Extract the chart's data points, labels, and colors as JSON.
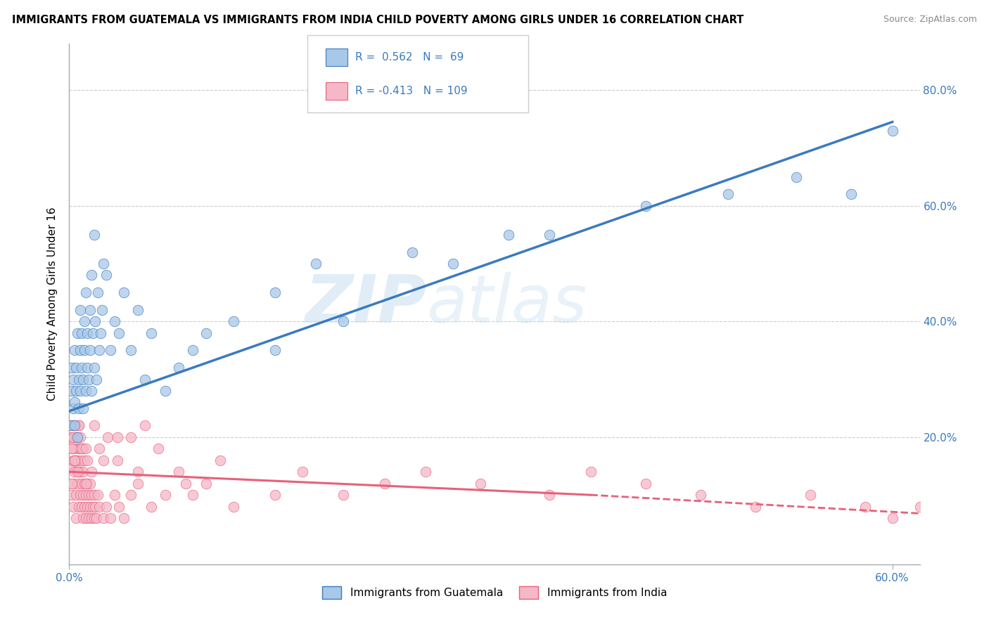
{
  "title": "IMMIGRANTS FROM GUATEMALA VS IMMIGRANTS FROM INDIA CHILD POVERTY AMONG GIRLS UNDER 16 CORRELATION CHART",
  "source": "Source: ZipAtlas.com",
  "ylabel": "Child Poverty Among Girls Under 16",
  "ylabel_right_labels": [
    "20.0%",
    "40.0%",
    "60.0%",
    "80.0%"
  ],
  "ylabel_right_values": [
    0.2,
    0.4,
    0.6,
    0.8
  ],
  "r1": 0.562,
  "n1": 69,
  "r2": -0.413,
  "n2": 109,
  "color_guatemala": "#a8c8e8",
  "color_india": "#f5b8c8",
  "line_color_guatemala": "#3a7abf",
  "line_color_india": "#e8607a",
  "watermark_zip": "ZIP",
  "watermark_atlas": "atlas",
  "xlim": [
    0.0,
    0.62
  ],
  "ylim": [
    -0.02,
    0.88
  ],
  "guatemala_x": [
    0.001,
    0.002,
    0.002,
    0.003,
    0.003,
    0.004,
    0.004,
    0.004,
    0.005,
    0.005,
    0.006,
    0.006,
    0.007,
    0.007,
    0.008,
    0.008,
    0.008,
    0.009,
    0.009,
    0.01,
    0.01,
    0.011,
    0.011,
    0.012,
    0.012,
    0.013,
    0.013,
    0.014,
    0.015,
    0.015,
    0.016,
    0.016,
    0.017,
    0.018,
    0.018,
    0.019,
    0.02,
    0.021,
    0.022,
    0.023,
    0.024,
    0.025,
    0.027,
    0.03,
    0.033,
    0.036,
    0.04,
    0.045,
    0.05,
    0.055,
    0.06,
    0.07,
    0.08,
    0.09,
    0.1,
    0.12,
    0.15,
    0.2,
    0.28,
    0.35,
    0.42,
    0.48,
    0.53,
    0.57,
    0.6,
    0.32,
    0.18,
    0.25,
    0.15
  ],
  "guatemala_y": [
    0.22,
    0.28,
    0.32,
    0.25,
    0.3,
    0.22,
    0.26,
    0.35,
    0.28,
    0.32,
    0.2,
    0.38,
    0.3,
    0.25,
    0.35,
    0.28,
    0.42,
    0.32,
    0.38,
    0.25,
    0.3,
    0.4,
    0.35,
    0.28,
    0.45,
    0.32,
    0.38,
    0.3,
    0.35,
    0.42,
    0.28,
    0.48,
    0.38,
    0.32,
    0.55,
    0.4,
    0.3,
    0.45,
    0.35,
    0.38,
    0.42,
    0.5,
    0.48,
    0.35,
    0.4,
    0.38,
    0.45,
    0.35,
    0.42,
    0.3,
    0.38,
    0.28,
    0.32,
    0.35,
    0.38,
    0.4,
    0.35,
    0.4,
    0.5,
    0.55,
    0.6,
    0.62,
    0.65,
    0.62,
    0.73,
    0.55,
    0.5,
    0.52,
    0.45
  ],
  "india_x": [
    0.001,
    0.001,
    0.002,
    0.002,
    0.002,
    0.003,
    0.003,
    0.003,
    0.003,
    0.004,
    0.004,
    0.004,
    0.005,
    0.005,
    0.005,
    0.005,
    0.006,
    0.006,
    0.006,
    0.007,
    0.007,
    0.007,
    0.007,
    0.008,
    0.008,
    0.008,
    0.009,
    0.009,
    0.009,
    0.01,
    0.01,
    0.01,
    0.01,
    0.011,
    0.011,
    0.011,
    0.012,
    0.012,
    0.013,
    0.013,
    0.013,
    0.014,
    0.014,
    0.015,
    0.015,
    0.016,
    0.016,
    0.017,
    0.018,
    0.018,
    0.019,
    0.02,
    0.021,
    0.022,
    0.025,
    0.027,
    0.03,
    0.033,
    0.036,
    0.04,
    0.045,
    0.05,
    0.06,
    0.07,
    0.08,
    0.09,
    0.1,
    0.12,
    0.15,
    0.17,
    0.2,
    0.23,
    0.26,
    0.3,
    0.35,
    0.38,
    0.42,
    0.46,
    0.5,
    0.54,
    0.58,
    0.6,
    0.62,
    0.035,
    0.045,
    0.055,
    0.028,
    0.022,
    0.016,
    0.012,
    0.009,
    0.007,
    0.005,
    0.004,
    0.003,
    0.002,
    0.002,
    0.003,
    0.004,
    0.006,
    0.008,
    0.012,
    0.018,
    0.025,
    0.035,
    0.05,
    0.065,
    0.085,
    0.11
  ],
  "india_y": [
    0.15,
    0.2,
    0.1,
    0.18,
    0.22,
    0.12,
    0.16,
    0.2,
    0.08,
    0.14,
    0.18,
    0.22,
    0.1,
    0.16,
    0.2,
    0.06,
    0.12,
    0.16,
    0.2,
    0.08,
    0.14,
    0.18,
    0.22,
    0.1,
    0.14,
    0.18,
    0.08,
    0.12,
    0.16,
    0.06,
    0.1,
    0.14,
    0.18,
    0.08,
    0.12,
    0.16,
    0.06,
    0.1,
    0.08,
    0.12,
    0.16,
    0.06,
    0.1,
    0.08,
    0.12,
    0.06,
    0.1,
    0.08,
    0.06,
    0.1,
    0.08,
    0.06,
    0.1,
    0.08,
    0.06,
    0.08,
    0.06,
    0.1,
    0.08,
    0.06,
    0.1,
    0.12,
    0.08,
    0.1,
    0.14,
    0.1,
    0.12,
    0.08,
    0.1,
    0.14,
    0.1,
    0.12,
    0.14,
    0.12,
    0.1,
    0.14,
    0.12,
    0.1,
    0.08,
    0.1,
    0.08,
    0.06,
    0.08,
    0.16,
    0.2,
    0.22,
    0.2,
    0.18,
    0.14,
    0.12,
    0.18,
    0.22,
    0.2,
    0.16,
    0.22,
    0.18,
    0.12,
    0.2,
    0.16,
    0.14,
    0.2,
    0.18,
    0.22,
    0.16,
    0.2,
    0.14,
    0.18,
    0.12,
    0.16
  ]
}
